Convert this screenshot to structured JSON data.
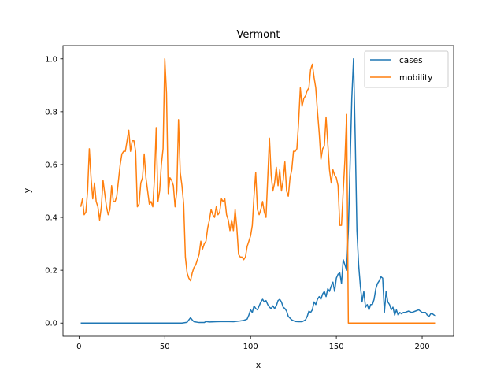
{
  "chart_data": {
    "type": "line",
    "title": "Vermont",
    "xlabel": "x",
    "ylabel": "y",
    "xlim": [
      -9.35,
      218.35
    ],
    "ylim": [
      -0.05,
      1.05
    ],
    "xticks": [
      0,
      50,
      100,
      150,
      200
    ],
    "yticks": [
      0.0,
      0.2,
      0.4,
      0.6,
      0.8,
      1.0
    ],
    "xtick_labels": [
      "0",
      "50",
      "100",
      "150",
      "200"
    ],
    "ytick_labels": [
      "0.0",
      "0.2",
      "0.4",
      "0.6",
      "0.8",
      "1.0"
    ],
    "grid": false,
    "legend_position": "upper right",
    "series": [
      {
        "name": "cases",
        "color": "#1f77b4",
        "points": [
          [
            1,
            0
          ],
          [
            60,
            0
          ],
          [
            63,
            0.003
          ],
          [
            64,
            0.012
          ],
          [
            65,
            0.02
          ],
          [
            66,
            0.012
          ],
          [
            67,
            0.005
          ],
          [
            70,
            0.002
          ],
          [
            73,
            0.002
          ],
          [
            74,
            0.006
          ],
          [
            76,
            0.004
          ],
          [
            80,
            0.005
          ],
          [
            85,
            0.006
          ],
          [
            90,
            0.005
          ],
          [
            94,
            0.008
          ],
          [
            96,
            0.01
          ],
          [
            98,
            0.015
          ],
          [
            99,
            0.03
          ],
          [
            100,
            0.05
          ],
          [
            101,
            0.04
          ],
          [
            102,
            0.065
          ],
          [
            103,
            0.055
          ],
          [
            104,
            0.05
          ],
          [
            105,
            0.065
          ],
          [
            106,
            0.08
          ],
          [
            107,
            0.09
          ],
          [
            108,
            0.08
          ],
          [
            109,
            0.085
          ],
          [
            110,
            0.07
          ],
          [
            111,
            0.06
          ],
          [
            112,
            0.055
          ],
          [
            113,
            0.065
          ],
          [
            114,
            0.055
          ],
          [
            115,
            0.065
          ],
          [
            116,
            0.085
          ],
          [
            117,
            0.09
          ],
          [
            118,
            0.08
          ],
          [
            119,
            0.06
          ],
          [
            120,
            0.055
          ],
          [
            121,
            0.045
          ],
          [
            122,
            0.025
          ],
          [
            124,
            0.012
          ],
          [
            126,
            0.006
          ],
          [
            128,
            0.005
          ],
          [
            130,
            0.005
          ],
          [
            132,
            0.012
          ],
          [
            133,
            0.025
          ],
          [
            134,
            0.045
          ],
          [
            135,
            0.04
          ],
          [
            136,
            0.05
          ],
          [
            137,
            0.08
          ],
          [
            138,
            0.07
          ],
          [
            139,
            0.09
          ],
          [
            140,
            0.1
          ],
          [
            141,
            0.09
          ],
          [
            142,
            0.11
          ],
          [
            143,
            0.12
          ],
          [
            144,
            0.1
          ],
          [
            145,
            0.13
          ],
          [
            146,
            0.12
          ],
          [
            147,
            0.14
          ],
          [
            148,
            0.155
          ],
          [
            149,
            0.12
          ],
          [
            150,
            0.17
          ],
          [
            151,
            0.185
          ],
          [
            152,
            0.19
          ],
          [
            153,
            0.15
          ],
          [
            154,
            0.24
          ],
          [
            155,
            0.22
          ],
          [
            156,
            0.2
          ],
          [
            157,
            0.35
          ],
          [
            158,
            0.6
          ],
          [
            159,
            0.85
          ],
          [
            160,
            1.0
          ],
          [
            161,
            0.7
          ],
          [
            162,
            0.35
          ],
          [
            163,
            0.22
          ],
          [
            164,
            0.14
          ],
          [
            165,
            0.08
          ],
          [
            166,
            0.12
          ],
          [
            167,
            0.06
          ],
          [
            168,
            0.07
          ],
          [
            169,
            0.05
          ],
          [
            170,
            0.07
          ],
          [
            171,
            0.07
          ],
          [
            172,
            0.09
          ],
          [
            173,
            0.13
          ],
          [
            174,
            0.15
          ],
          [
            175,
            0.16
          ],
          [
            176,
            0.175
          ],
          [
            177,
            0.17
          ],
          [
            178,
            0.04
          ],
          [
            179,
            0.12
          ],
          [
            180,
            0.08
          ],
          [
            181,
            0.07
          ],
          [
            182,
            0.05
          ],
          [
            183,
            0.06
          ],
          [
            184,
            0.03
          ],
          [
            185,
            0.05
          ],
          [
            186,
            0.03
          ],
          [
            187,
            0.04
          ],
          [
            188,
            0.035
          ],
          [
            189,
            0.04
          ],
          [
            190,
            0.04
          ],
          [
            192,
            0.045
          ],
          [
            194,
            0.04
          ],
          [
            196,
            0.045
          ],
          [
            198,
            0.05
          ],
          [
            200,
            0.04
          ],
          [
            202,
            0.04
          ],
          [
            203,
            0.03
          ],
          [
            204,
            0.025
          ],
          [
            205,
            0.035
          ],
          [
            206,
            0.035
          ],
          [
            207,
            0.03
          ],
          [
            208,
            0.028
          ]
        ]
      },
      {
        "name": "mobility",
        "color": "#ff7f0e",
        "points": [
          [
            1,
            0.44
          ],
          [
            2,
            0.47
          ],
          [
            3,
            0.41
          ],
          [
            4,
            0.42
          ],
          [
            5,
            0.5
          ],
          [
            6,
            0.66
          ],
          [
            7,
            0.55
          ],
          [
            8,
            0.47
          ],
          [
            9,
            0.53
          ],
          [
            10,
            0.46
          ],
          [
            11,
            0.44
          ],
          [
            12,
            0.39
          ],
          [
            13,
            0.44
          ],
          [
            14,
            0.54
          ],
          [
            15,
            0.49
          ],
          [
            16,
            0.44
          ],
          [
            17,
            0.41
          ],
          [
            18,
            0.43
          ],
          [
            19,
            0.52
          ],
          [
            20,
            0.46
          ],
          [
            21,
            0.46
          ],
          [
            22,
            0.48
          ],
          [
            23,
            0.54
          ],
          [
            24,
            0.6
          ],
          [
            25,
            0.64
          ],
          [
            26,
            0.65
          ],
          [
            27,
            0.65
          ],
          [
            28,
            0.69
          ],
          [
            29,
            0.73
          ],
          [
            30,
            0.65
          ],
          [
            31,
            0.69
          ],
          [
            32,
            0.69
          ],
          [
            33,
            0.65
          ],
          [
            34,
            0.44
          ],
          [
            35,
            0.45
          ],
          [
            36,
            0.53
          ],
          [
            37,
            0.55
          ],
          [
            38,
            0.64
          ],
          [
            39,
            0.55
          ],
          [
            40,
            0.5
          ],
          [
            41,
            0.45
          ],
          [
            42,
            0.46
          ],
          [
            43,
            0.44
          ],
          [
            44,
            0.55
          ],
          [
            45,
            0.74
          ],
          [
            46,
            0.46
          ],
          [
            47,
            0.5
          ],
          [
            48,
            0.6
          ],
          [
            49,
            0.66
          ],
          [
            50,
            1.0
          ],
          [
            51,
            0.87
          ],
          [
            52,
            0.49
          ],
          [
            53,
            0.55
          ],
          [
            54,
            0.54
          ],
          [
            55,
            0.52
          ],
          [
            56,
            0.44
          ],
          [
            57,
            0.5
          ],
          [
            58,
            0.77
          ],
          [
            59,
            0.57
          ],
          [
            60,
            0.52
          ],
          [
            61,
            0.45
          ],
          [
            62,
            0.25
          ],
          [
            63,
            0.19
          ],
          [
            64,
            0.17
          ],
          [
            65,
            0.16
          ],
          [
            66,
            0.19
          ],
          [
            67,
            0.21
          ],
          [
            68,
            0.22
          ],
          [
            69,
            0.24
          ],
          [
            70,
            0.26
          ],
          [
            71,
            0.31
          ],
          [
            72,
            0.28
          ],
          [
            73,
            0.3
          ],
          [
            74,
            0.31
          ],
          [
            75,
            0.36
          ],
          [
            76,
            0.39
          ],
          [
            77,
            0.43
          ],
          [
            78,
            0.41
          ],
          [
            79,
            0.4
          ],
          [
            80,
            0.44
          ],
          [
            81,
            0.41
          ],
          [
            82,
            0.42
          ],
          [
            83,
            0.47
          ],
          [
            84,
            0.46
          ],
          [
            85,
            0.47
          ],
          [
            86,
            0.41
          ],
          [
            87,
            0.39
          ],
          [
            88,
            0.35
          ],
          [
            89,
            0.39
          ],
          [
            90,
            0.35
          ],
          [
            91,
            0.43
          ],
          [
            92,
            0.36
          ],
          [
            93,
            0.26
          ],
          [
            94,
            0.25
          ],
          [
            95,
            0.25
          ],
          [
            96,
            0.24
          ],
          [
            97,
            0.25
          ],
          [
            98,
            0.29
          ],
          [
            99,
            0.31
          ],
          [
            100,
            0.33
          ],
          [
            101,
            0.37
          ],
          [
            102,
            0.48
          ],
          [
            103,
            0.57
          ],
          [
            104,
            0.43
          ],
          [
            105,
            0.41
          ],
          [
            106,
            0.43
          ],
          [
            107,
            0.46
          ],
          [
            108,
            0.42
          ],
          [
            109,
            0.4
          ],
          [
            110,
            0.55
          ],
          [
            111,
            0.7
          ],
          [
            112,
            0.56
          ],
          [
            113,
            0.5
          ],
          [
            114,
            0.53
          ],
          [
            115,
            0.59
          ],
          [
            116,
            0.52
          ],
          [
            117,
            0.58
          ],
          [
            118,
            0.5
          ],
          [
            119,
            0.54
          ],
          [
            120,
            0.61
          ],
          [
            121,
            0.5
          ],
          [
            122,
            0.48
          ],
          [
            123,
            0.55
          ],
          [
            124,
            0.58
          ],
          [
            125,
            0.65
          ],
          [
            126,
            0.65
          ],
          [
            127,
            0.66
          ],
          [
            128,
            0.76
          ],
          [
            129,
            0.89
          ],
          [
            130,
            0.82
          ],
          [
            131,
            0.85
          ],
          [
            132,
            0.86
          ],
          [
            133,
            0.88
          ],
          [
            134,
            0.89
          ],
          [
            135,
            0.96
          ],
          [
            136,
            0.98
          ],
          [
            137,
            0.93
          ],
          [
            138,
            0.89
          ],
          [
            139,
            0.8
          ],
          [
            140,
            0.72
          ],
          [
            141,
            0.62
          ],
          [
            142,
            0.66
          ],
          [
            143,
            0.67
          ],
          [
            144,
            0.78
          ],
          [
            145,
            0.68
          ],
          [
            146,
            0.58
          ],
          [
            147,
            0.53
          ],
          [
            148,
            0.58
          ],
          [
            149,
            0.56
          ],
          [
            150,
            0.55
          ],
          [
            151,
            0.52
          ],
          [
            152,
            0.37
          ],
          [
            153,
            0.37
          ],
          [
            154,
            0.5
          ],
          [
            155,
            0.62
          ],
          [
            156,
            0.79
          ],
          [
            157,
            0.0
          ],
          [
            208,
            0.0
          ]
        ]
      }
    ]
  },
  "legend": {
    "items": [
      {
        "label": "cases",
        "color": "#1f77b4"
      },
      {
        "label": "mobility",
        "color": "#ff7f0e"
      }
    ]
  }
}
